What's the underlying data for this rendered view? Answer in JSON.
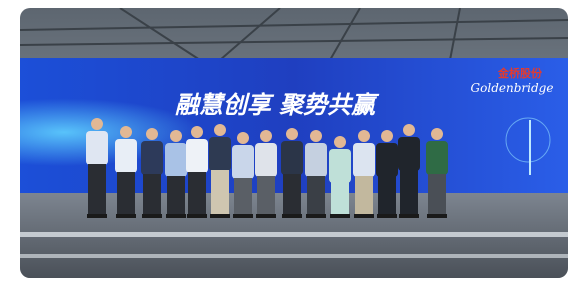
{
  "photo": {
    "banner_title": "融慧创享  聚势共赢",
    "logo_cn": "金桥股份",
    "logo_en": "Goldenbridge"
  }
}
